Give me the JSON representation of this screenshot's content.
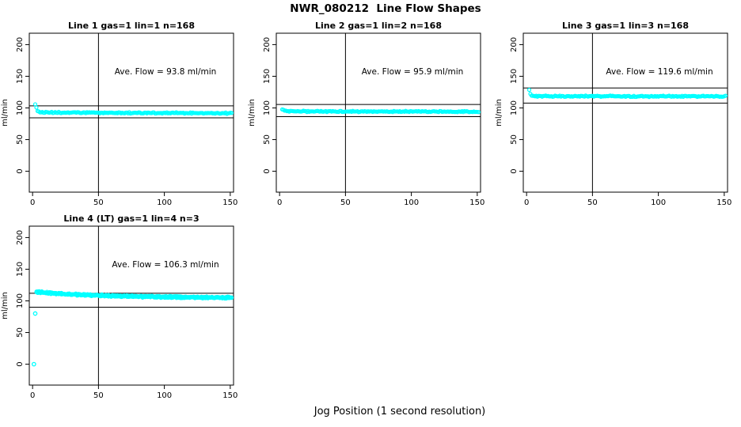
{
  "title": "NWR_080212  Line Flow Shapes",
  "xlabel": "Jog Position (1 second resolution)",
  "point_color": "#00FFFF",
  "axis_color": "#000000",
  "background_color": "#FFFFFF",
  "chart_data": [
    {
      "type": "scatter",
      "title": "Line 1 gas=1 lin=1 n=168",
      "ylabel": "ml/min",
      "annotation": "Ave. Flow =  93.8  ml/min",
      "ave_flow_ml_min": 93.8,
      "x_ticks": [
        0,
        50,
        100,
        150
      ],
      "y_ticks": [
        0,
        50,
        100,
        150,
        200
      ],
      "xlim": [
        -2.5,
        152.5
      ],
      "ylim": [
        -33,
        218
      ],
      "vline_x": 50,
      "ref_lines": {
        "upper": 103.2,
        "lower": 84.4
      },
      "band": {
        "x_start": 2,
        "x_end": 151,
        "n_points": 168,
        "y_base": 92.8,
        "y_peak_amp": 13.2,
        "decay": 1.3,
        "drift": -0.008,
        "jitter": 1.3,
        "traces": 1
      },
      "outliers": []
    },
    {
      "type": "scatter",
      "title": "Line 2 gas=1 lin=2 n=168",
      "ylabel": "ml/min",
      "annotation": "Ave. Flow =  95.9  ml/min",
      "ave_flow_ml_min": 95.9,
      "x_ticks": [
        0,
        50,
        100,
        150
      ],
      "y_ticks": [
        0,
        50,
        100,
        150,
        200
      ],
      "xlim": [
        -2.5,
        152.5
      ],
      "ylim": [
        -33,
        218
      ],
      "vline_x": 50,
      "ref_lines": {
        "upper": 105.5,
        "lower": 86.3
      },
      "band": {
        "x_start": 2,
        "x_end": 151,
        "n_points": 168,
        "y_base": 94.6,
        "y_peak_amp": 3.8,
        "decay": 2.0,
        "drift": -0.004,
        "jitter": 1.2,
        "traces": 1
      },
      "outliers": []
    },
    {
      "type": "scatter",
      "title": "Line 3 gas=1 lin=3 n=168",
      "ylabel": "ml/min",
      "annotation": "Ave. Flow =  119.6  ml/min",
      "ave_flow_ml_min": 119.6,
      "x_ticks": [
        0,
        50,
        100,
        150
      ],
      "y_ticks": [
        0,
        50,
        100,
        150,
        200
      ],
      "xlim": [
        -2.5,
        152.5
      ],
      "ylim": [
        -33,
        218
      ],
      "vline_x": 50,
      "ref_lines": {
        "upper": 131.6,
        "lower": 107.6
      },
      "band": {
        "x_start": 2,
        "x_end": 151,
        "n_points": 168,
        "y_base": 118.6,
        "y_peak_amp": 9.5,
        "decay": 0.9,
        "drift": -0.002,
        "jitter": 1.2,
        "traces": 1
      },
      "outliers": []
    },
    {
      "type": "scatter",
      "title": "Line 4 (LT) gas=1 lin=4 n=3",
      "ylabel": "ml/min",
      "annotation": "Ave. Flow =  106.3  ml/min",
      "ave_flow_ml_min": 106.3,
      "x_ticks": [
        0,
        50,
        100,
        150
      ],
      "y_ticks": [
        0,
        50,
        100,
        150,
        200
      ],
      "xlim": [
        -2.5,
        152.5
      ],
      "ylim": [
        -33,
        218
      ],
      "vline_x": 50,
      "ref_lines": {
        "upper": 112.0,
        "lower": 90.0
      },
      "band": {
        "x_start": 3,
        "x_end": 151,
        "n_points": 150,
        "y_base": 104.6,
        "y_peak_amp": 9.5,
        "decay": 55,
        "drift": 0,
        "jitter": 1.7,
        "traces": 3
      },
      "outliers": [
        [
          1,
          0
        ],
        [
          2,
          80
        ]
      ]
    }
  ]
}
